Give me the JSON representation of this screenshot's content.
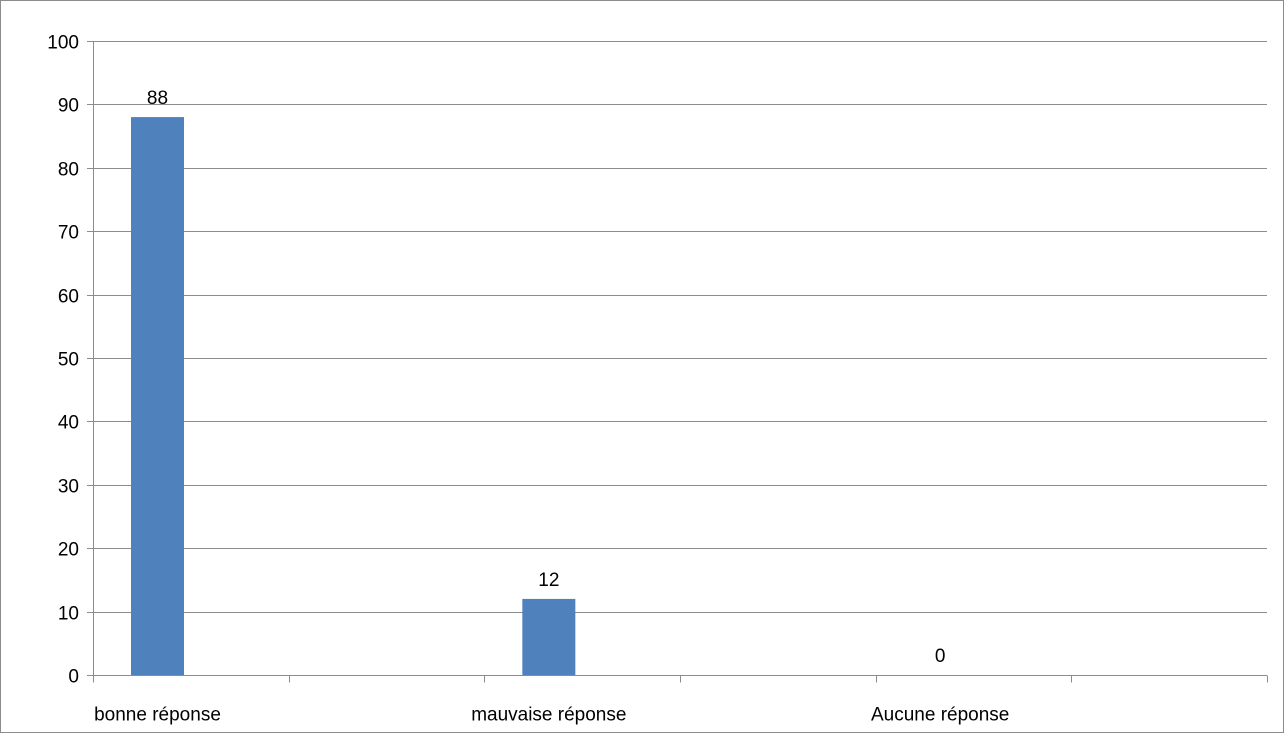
{
  "chart_data": {
    "type": "bar",
    "title": "",
    "xlabel": "",
    "ylabel": "",
    "categories": [
      "bonne réponse",
      "mauvaise réponse",
      "Aucune réponse"
    ],
    "values": [
      88,
      12,
      0
    ],
    "data_labels": [
      "88",
      "12",
      "0"
    ],
    "ylim": [
      0,
      100
    ],
    "y_ticks": [
      0,
      10,
      20,
      30,
      40,
      50,
      60,
      70,
      80,
      90,
      100
    ],
    "grid": true,
    "legend": "none",
    "bar_color": "#4f81bd",
    "gridline_color": "#8c8c8c"
  }
}
